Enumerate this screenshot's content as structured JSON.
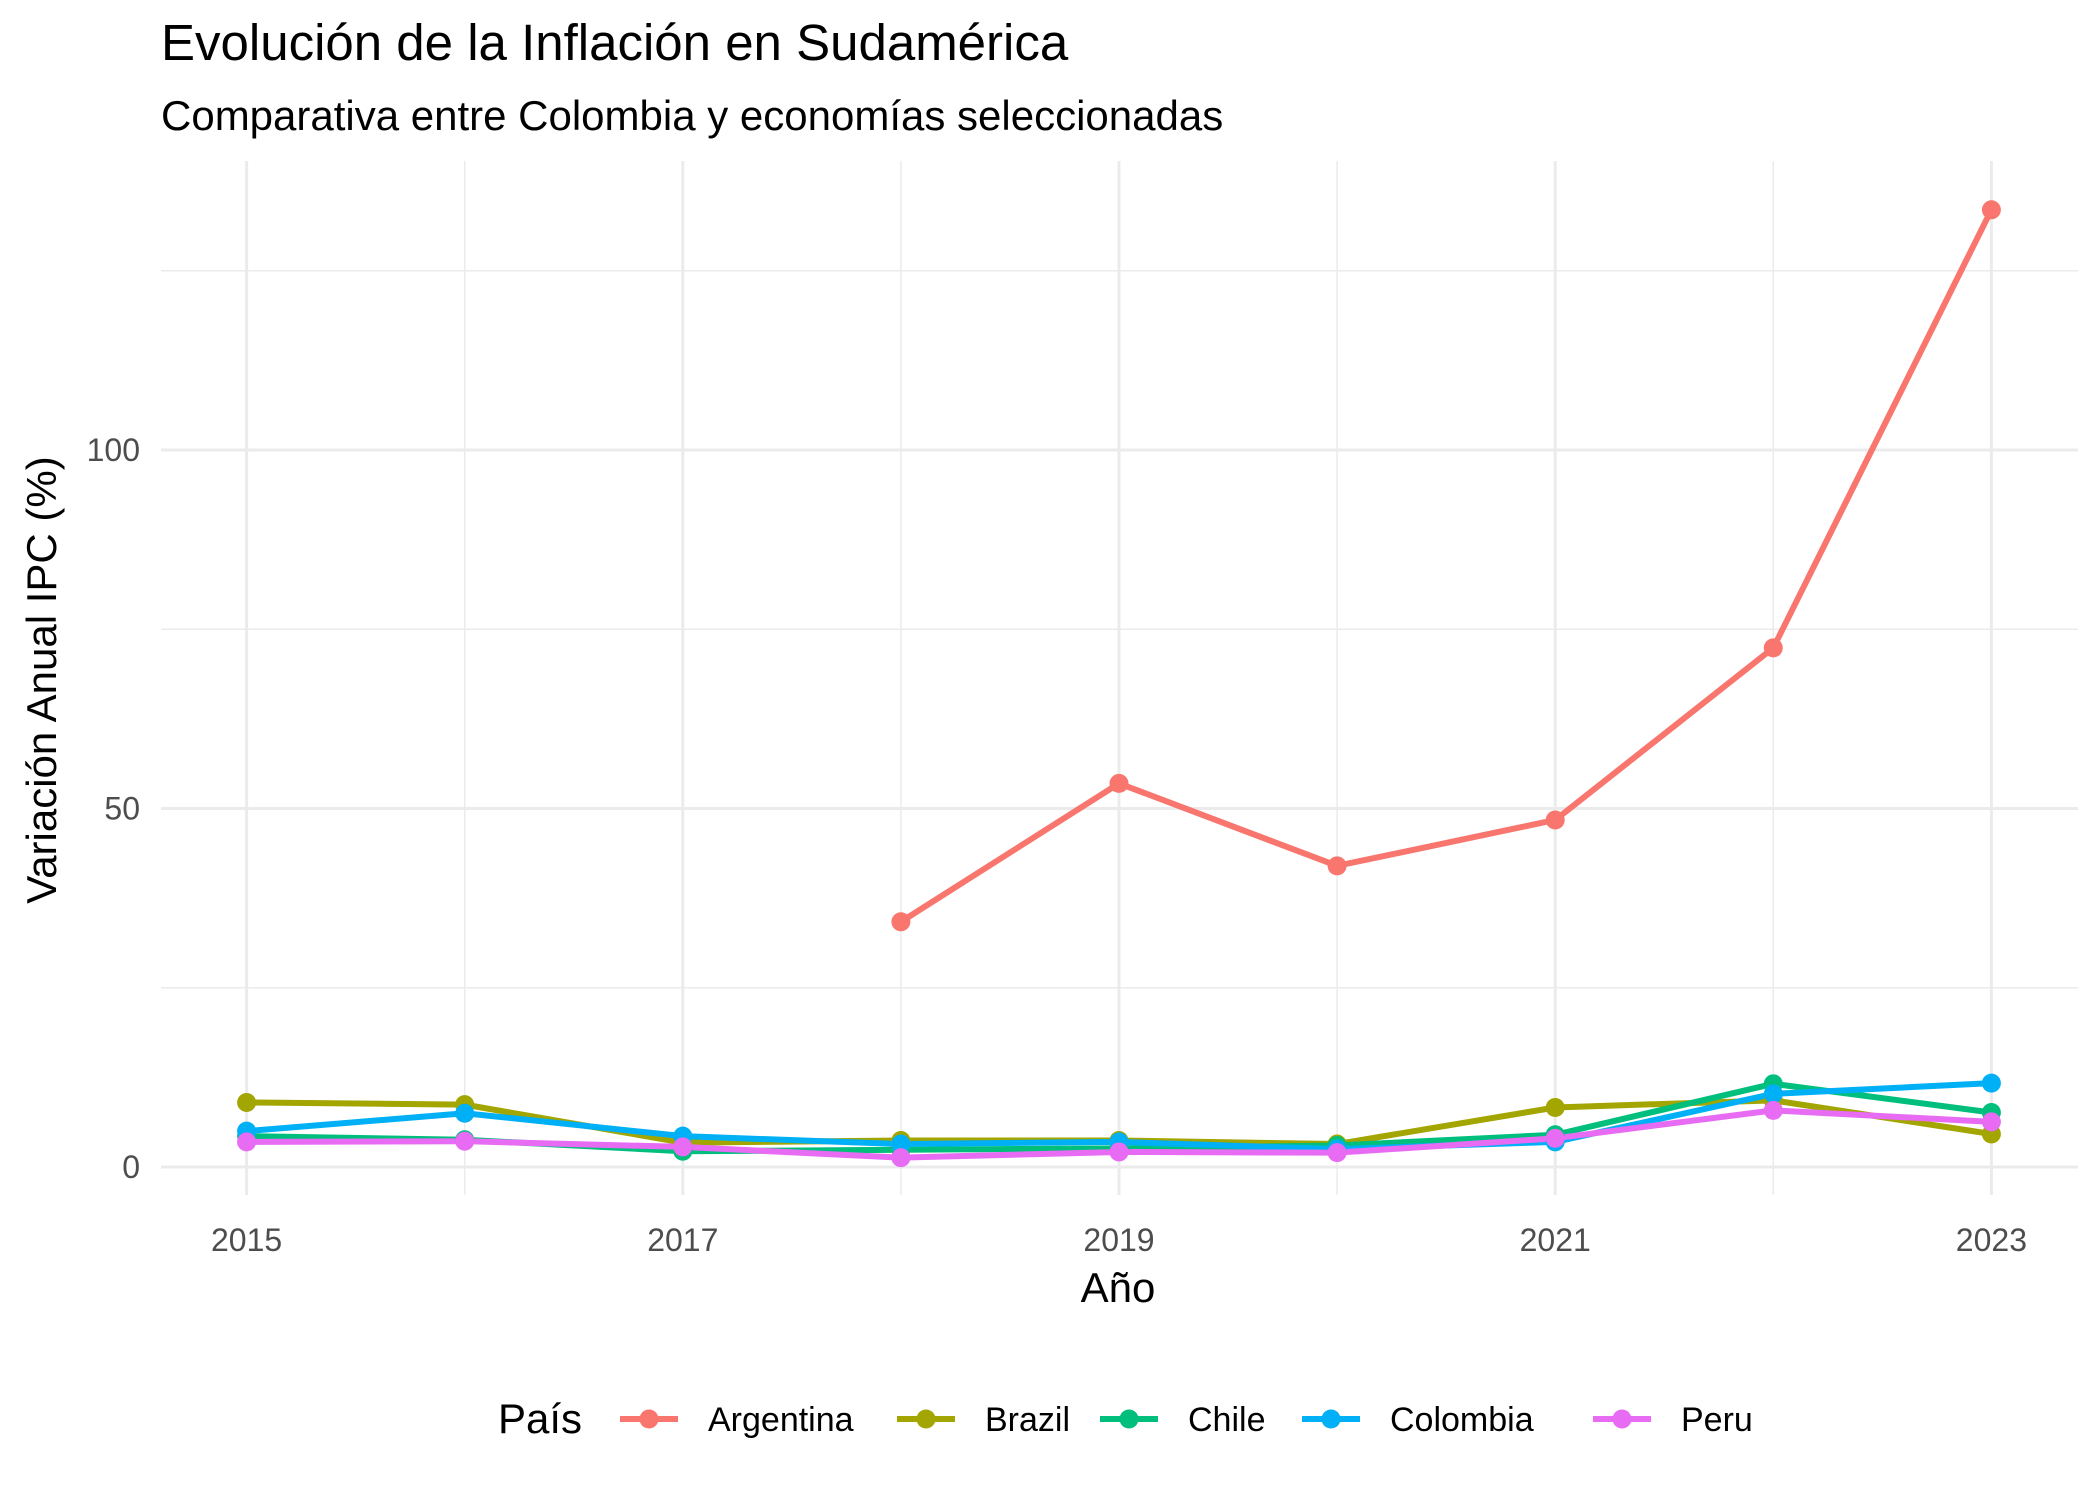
{
  "chart_data": {
    "type": "line",
    "title": "Evolución de la Inflación en Sudamérica",
    "subtitle": "Comparativa entre Colombia y economías seleccionadas",
    "xlabel": "Año",
    "ylabel": "Variación Anual IPC (%)",
    "xlim": [
      2014.8,
      2023.2
    ],
    "ylim": [
      -5,
      140
    ],
    "x_ticks": [
      2015,
      2017,
      2019,
      2021,
      2023
    ],
    "y_ticks": [
      0,
      50,
      100
    ],
    "grid": true,
    "legend": {
      "title": "País",
      "placement": "bottom"
    },
    "series": [
      {
        "name": "Argentina",
        "color": "#F8766D",
        "x": [
          2018,
          2019,
          2020,
          2021,
          2022,
          2023
        ],
        "values": [
          34.2,
          53.5,
          42.0,
          48.4,
          72.4,
          133.5
        ]
      },
      {
        "name": "Brazil",
        "color": "#A3A500",
        "x": [
          2015,
          2016,
          2017,
          2018,
          2019,
          2020,
          2021,
          2022,
          2023
        ],
        "values": [
          9.0,
          8.7,
          3.4,
          3.7,
          3.7,
          3.2,
          8.3,
          9.3,
          4.6
        ]
      },
      {
        "name": "Chile",
        "color": "#00BF7D",
        "x": [
          2015,
          2016,
          2017,
          2018,
          2019,
          2020,
          2021,
          2022,
          2023
        ],
        "values": [
          4.3,
          3.8,
          2.2,
          2.4,
          2.6,
          3.0,
          4.5,
          11.6,
          7.6
        ]
      },
      {
        "name": "Colombia",
        "color": "#00B0F6",
        "x": [
          2015,
          2016,
          2017,
          2018,
          2019,
          2020,
          2021,
          2022,
          2023
        ],
        "values": [
          5.0,
          7.5,
          4.3,
          3.2,
          3.5,
          2.5,
          3.5,
          10.2,
          11.7
        ]
      },
      {
        "name": "Peru",
        "color": "#E76BF3",
        "x": [
          2015,
          2016,
          2017,
          2018,
          2019,
          2020,
          2021,
          2022,
          2023
        ],
        "values": [
          3.5,
          3.6,
          2.8,
          1.3,
          2.1,
          2.0,
          4.0,
          7.9,
          6.3
        ]
      }
    ]
  }
}
